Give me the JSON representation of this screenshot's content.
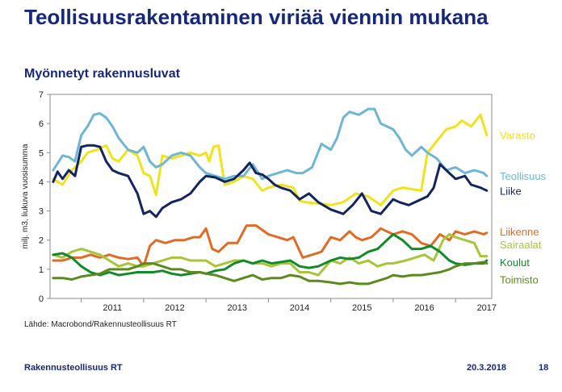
{
  "header": {
    "title": "Teollisuusrakentaminen viriää viennin mukana",
    "subtitle": "Myönnetyt rakennusluvat"
  },
  "footer": {
    "source": "Lähde: Macrobond/Rakennusteollisuus RT",
    "org": "Rakennusteollisuus RT",
    "date": "20.3.2018",
    "page": "18"
  },
  "chart_data": {
    "type": "line",
    "title": "",
    "xlabel": "",
    "ylabel": "milj. m3, liukuva vuosisumma",
    "ylim": [
      0,
      7
    ],
    "yticks": [
      0,
      1,
      2,
      3,
      4,
      5,
      6,
      7
    ],
    "xlim": [
      2010.5,
      2017.58
    ],
    "xtick_labels": [
      "2011",
      "2012",
      "2013",
      "2014",
      "2015",
      "2016",
      "2017"
    ],
    "grid": false,
    "legend": "right",
    "series": [
      {
        "name": "Varasto",
        "color": "#f2e21b",
        "label_y": 5.6,
        "x": [
          2010.55,
          2010.7,
          2010.85,
          2011.0,
          2011.1,
          2011.25,
          2011.4,
          2011.5,
          2011.6,
          2011.75,
          2011.9,
          2012.0,
          2012.1,
          2012.2,
          2012.3,
          2012.45,
          2012.6,
          2012.75,
          2012.9,
          2013.0,
          2013.05,
          2013.12,
          2013.2,
          2013.3,
          2013.45,
          2013.6,
          2013.75,
          2013.9,
          2014.0,
          2014.2,
          2014.4,
          2014.5,
          2014.6,
          2014.8,
          2015.0,
          2015.2,
          2015.4,
          2015.6,
          2015.8,
          2016.0,
          2016.15,
          2016.3,
          2016.45,
          2016.55,
          2016.7,
          2016.85,
          2017.0,
          2017.1,
          2017.25,
          2017.4,
          2017.5
        ],
        "y": [
          4.1,
          3.9,
          4.4,
          4.7,
          5.0,
          5.1,
          5.25,
          4.8,
          4.7,
          5.1,
          4.9,
          4.3,
          4.2,
          3.55,
          4.9,
          4.8,
          4.9,
          5.0,
          4.9,
          5.0,
          4.7,
          5.2,
          5.25,
          3.9,
          4.0,
          4.2,
          4.1,
          3.7,
          3.8,
          3.9,
          3.8,
          3.35,
          3.3,
          3.25,
          3.2,
          3.3,
          3.6,
          3.5,
          3.2,
          3.7,
          3.8,
          3.75,
          3.7,
          5.0,
          5.4,
          5.8,
          5.9,
          6.1,
          5.9,
          6.3,
          5.6
        ]
      },
      {
        "name": "Teollisuus",
        "color": "#6fb5d4",
        "label_y": 4.2,
        "x": [
          2010.55,
          2010.7,
          2010.8,
          2010.9,
          2011.0,
          2011.1,
          2011.2,
          2011.3,
          2011.4,
          2011.5,
          2011.6,
          2011.75,
          2011.9,
          2012.0,
          2012.1,
          2012.2,
          2012.3,
          2012.45,
          2012.6,
          2012.75,
          2012.9,
          2013.0,
          2013.15,
          2013.3,
          2013.45,
          2013.6,
          2013.75,
          2013.9,
          2014.0,
          2014.15,
          2014.3,
          2014.45,
          2014.55,
          2014.7,
          2014.85,
          2015.0,
          2015.1,
          2015.2,
          2015.3,
          2015.45,
          2015.6,
          2015.7,
          2015.8,
          2016.0,
          2016.1,
          2016.2,
          2016.3,
          2016.45,
          2016.55,
          2016.7,
          2016.85,
          2017.0,
          2017.15,
          2017.3,
          2017.45,
          2017.5
        ],
        "y": [
          4.4,
          4.9,
          4.85,
          4.7,
          5.6,
          5.9,
          6.3,
          6.35,
          6.2,
          5.9,
          5.5,
          5.1,
          5.0,
          5.2,
          4.7,
          4.5,
          4.6,
          4.9,
          5.0,
          4.9,
          4.5,
          4.3,
          4.2,
          4.1,
          4.2,
          4.2,
          4.6,
          4.1,
          4.2,
          4.3,
          4.4,
          4.3,
          4.3,
          4.5,
          5.3,
          5.1,
          5.5,
          6.2,
          6.4,
          6.3,
          6.5,
          6.5,
          6.0,
          5.8,
          5.5,
          5.1,
          4.9,
          5.2,
          5.0,
          4.8,
          4.4,
          4.5,
          4.3,
          4.4,
          4.3,
          4.2
        ]
      },
      {
        "name": "Liike",
        "color": "#13255f",
        "label_y": 3.7,
        "x": [
          2010.55,
          2010.62,
          2010.7,
          2010.8,
          2010.9,
          2011.0,
          2011.1,
          2011.2,
          2011.3,
          2011.4,
          2011.5,
          2011.6,
          2011.75,
          2011.9,
          2012.0,
          2012.1,
          2012.2,
          2012.3,
          2012.45,
          2012.6,
          2012.75,
          2012.9,
          2013.0,
          2013.15,
          2013.3,
          2013.45,
          2013.6,
          2013.7,
          2013.8,
          2013.9,
          2014.0,
          2014.1,
          2014.2,
          2014.35,
          2014.5,
          2014.65,
          2014.8,
          2015.0,
          2015.2,
          2015.35,
          2015.5,
          2015.65,
          2015.8,
          2016.0,
          2016.1,
          2016.25,
          2016.4,
          2016.55,
          2016.65,
          2016.75,
          2016.9,
          2017.0,
          2017.15,
          2017.25,
          2017.4,
          2017.5
        ],
        "y": [
          4.0,
          4.35,
          4.1,
          4.4,
          4.2,
          5.2,
          5.25,
          5.25,
          5.2,
          4.7,
          4.4,
          4.3,
          4.2,
          3.6,
          2.9,
          3.0,
          2.8,
          3.1,
          3.3,
          3.4,
          3.6,
          4.0,
          4.2,
          4.15,
          4.0,
          4.1,
          4.4,
          4.65,
          4.3,
          4.25,
          4.1,
          3.9,
          3.8,
          3.7,
          3.4,
          3.6,
          3.3,
          3.05,
          2.9,
          3.2,
          3.6,
          3.0,
          2.9,
          3.4,
          3.3,
          3.2,
          3.35,
          3.5,
          3.8,
          4.6,
          4.3,
          4.1,
          4.2,
          3.9,
          3.8,
          3.7
        ]
      },
      {
        "name": "Liikenne",
        "color": "#e16b25",
        "label_y": 2.3,
        "x": [
          2010.55,
          2010.7,
          2010.85,
          2011.0,
          2011.15,
          2011.3,
          2011.45,
          2011.6,
          2011.75,
          2011.9,
          2012.0,
          2012.1,
          2012.2,
          2012.35,
          2012.5,
          2012.65,
          2012.8,
          2012.9,
          2013.0,
          2013.1,
          2013.2,
          2013.35,
          2013.5,
          2013.65,
          2013.8,
          2014.0,
          2014.15,
          2014.3,
          2014.4,
          2014.55,
          2014.7,
          2014.85,
          2015.0,
          2015.15,
          2015.3,
          2015.4,
          2015.5,
          2015.65,
          2015.8,
          2016.0,
          2016.15,
          2016.3,
          2016.45,
          2016.6,
          2016.75,
          2016.9,
          2017.0,
          2017.15,
          2017.3,
          2017.45,
          2017.5
        ],
        "y": [
          1.3,
          1.3,
          1.4,
          1.4,
          1.5,
          1.4,
          1.5,
          1.4,
          1.35,
          1.4,
          1.1,
          1.8,
          2.0,
          1.9,
          2.0,
          2.0,
          2.1,
          2.1,
          2.4,
          1.7,
          1.6,
          1.9,
          1.9,
          2.5,
          2.5,
          2.2,
          2.1,
          2.0,
          2.1,
          1.4,
          1.5,
          1.6,
          2.1,
          2.0,
          2.3,
          2.1,
          2.0,
          2.1,
          2.4,
          2.2,
          2.3,
          2.2,
          1.9,
          1.8,
          2.2,
          2.0,
          2.3,
          2.2,
          2.3,
          2.2,
          2.25
        ]
      },
      {
        "name": "Sairaalat",
        "color": "#a8c439",
        "label_y": 1.85,
        "x": [
          2010.55,
          2010.7,
          2010.85,
          2011.0,
          2011.15,
          2011.3,
          2011.45,
          2011.6,
          2011.75,
          2011.9,
          2012.0,
          2012.15,
          2012.3,
          2012.45,
          2012.6,
          2012.75,
          2012.9,
          2013.0,
          2013.15,
          2013.3,
          2013.45,
          2013.6,
          2013.75,
          2013.9,
          2014.05,
          2014.2,
          2014.35,
          2014.5,
          2014.65,
          2014.8,
          2015.0,
          2015.15,
          2015.3,
          2015.45,
          2015.6,
          2015.75,
          2015.9,
          2016.0,
          2016.2,
          2016.35,
          2016.5,
          2016.65,
          2016.8,
          2016.9,
          2017.0,
          2017.15,
          2017.3,
          2017.4,
          2017.5
        ],
        "y": [
          1.5,
          1.4,
          1.6,
          1.7,
          1.6,
          1.5,
          1.3,
          1.1,
          1.2,
          1.1,
          1.1,
          1.2,
          1.3,
          1.4,
          1.4,
          1.3,
          1.3,
          1.3,
          1.1,
          1.2,
          1.3,
          1.3,
          1.2,
          1.2,
          1.1,
          1.2,
          1.2,
          0.9,
          0.9,
          0.8,
          1.3,
          1.2,
          1.4,
          1.2,
          1.3,
          1.1,
          1.2,
          1.2,
          1.3,
          1.4,
          1.5,
          1.3,
          2.0,
          2.2,
          2.1,
          2.0,
          1.9,
          1.45,
          1.45
        ]
      },
      {
        "name": "Koulut",
        "color": "#138a2a",
        "label_y": 1.25,
        "x": [
          2010.55,
          2010.7,
          2010.85,
          2011.0,
          2011.15,
          2011.3,
          2011.45,
          2011.6,
          2011.75,
          2011.9,
          2012.0,
          2012.15,
          2012.3,
          2012.45,
          2012.6,
          2012.75,
          2012.9,
          2013.0,
          2013.15,
          2013.3,
          2013.45,
          2013.6,
          2013.75,
          2013.9,
          2014.05,
          2014.2,
          2014.35,
          2014.5,
          2014.65,
          2014.8,
          2015.0,
          2015.15,
          2015.3,
          2015.45,
          2015.6,
          2015.75,
          2015.9,
          2016.0,
          2016.15,
          2016.3,
          2016.45,
          2016.6,
          2016.75,
          2016.9,
          2017.0,
          2017.15,
          2017.3,
          2017.45,
          2017.5
        ],
        "y": [
          1.5,
          1.55,
          1.4,
          1.1,
          0.9,
          0.8,
          0.9,
          0.8,
          0.85,
          0.9,
          0.9,
          0.9,
          0.95,
          0.85,
          0.8,
          0.85,
          0.9,
          0.85,
          0.95,
          1.0,
          1.2,
          1.3,
          1.2,
          1.3,
          1.2,
          1.25,
          1.3,
          1.1,
          1.05,
          1.1,
          1.3,
          1.4,
          1.35,
          1.4,
          1.6,
          1.7,
          2.0,
          2.2,
          2.0,
          1.7,
          1.7,
          1.8,
          1.6,
          1.3,
          1.2,
          1.15,
          1.2,
          1.2,
          1.3
        ]
      },
      {
        "name": "Toimisto",
        "color": "#5c8a1e",
        "label_y": 0.65,
        "x": [
          2010.55,
          2010.7,
          2010.85,
          2011.0,
          2011.15,
          2011.3,
          2011.45,
          2011.6,
          2011.75,
          2011.9,
          2012.0,
          2012.15,
          2012.3,
          2012.45,
          2012.6,
          2012.75,
          2012.9,
          2013.0,
          2013.15,
          2013.3,
          2013.45,
          2013.6,
          2013.75,
          2013.9,
          2014.05,
          2014.2,
          2014.35,
          2014.5,
          2014.65,
          2014.8,
          2015.0,
          2015.15,
          2015.3,
          2015.45,
          2015.6,
          2015.75,
          2015.9,
          2016.0,
          2016.15,
          2016.3,
          2016.45,
          2016.6,
          2016.75,
          2016.9,
          2017.0,
          2017.15,
          2017.3,
          2017.45,
          2017.5
        ],
        "y": [
          0.7,
          0.7,
          0.65,
          0.75,
          0.8,
          0.85,
          1.0,
          1.0,
          1.0,
          1.1,
          1.2,
          1.2,
          1.1,
          1.0,
          1.0,
          0.9,
          0.9,
          0.85,
          0.8,
          0.7,
          0.6,
          0.7,
          0.8,
          0.65,
          0.7,
          0.7,
          0.8,
          0.75,
          0.6,
          0.6,
          0.55,
          0.5,
          0.55,
          0.5,
          0.5,
          0.6,
          0.7,
          0.8,
          0.75,
          0.8,
          0.8,
          0.85,
          0.9,
          1.0,
          1.1,
          1.2,
          1.2,
          1.25,
          1.2
        ]
      }
    ]
  }
}
